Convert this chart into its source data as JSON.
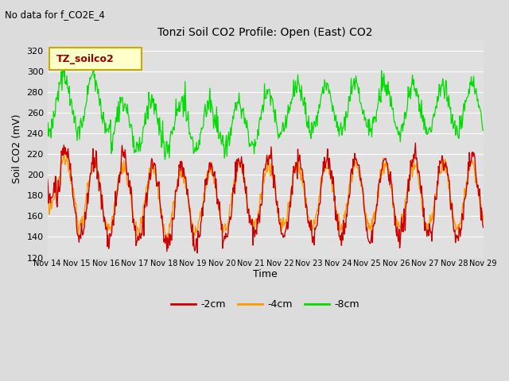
{
  "title": "Tonzi Soil CO2 Profile: Open (East) CO2",
  "subtitle": "No data for f_CO2E_4",
  "ylabel": "Soil CO2 (mV)",
  "xlabel": "Time",
  "legend_label": "TZ_soilco2",
  "ylim": [
    120,
    330
  ],
  "yticks": [
    120,
    140,
    160,
    180,
    200,
    220,
    240,
    260,
    280,
    300,
    320
  ],
  "xtick_labels": [
    "Nov 14",
    "Nov 15",
    "Nov 16",
    "Nov 17",
    "Nov 18",
    "Nov 19",
    "Nov 20",
    "Nov 21",
    "Nov 22",
    "Nov 23",
    "Nov 24",
    "Nov 25",
    "Nov 26",
    "Nov 27",
    "Nov 28",
    "Nov 29"
  ],
  "line_colors": {
    "neg2cm": "#cc0000",
    "neg4cm": "#ff9900",
    "neg8cm": "#00dd00"
  },
  "line_labels": [
    "-2cm",
    "-4cm",
    "-8cm"
  ],
  "background_color": "#dcdcdc",
  "plot_bg_color": "#e0e0e0",
  "grid_color": "#ffffff",
  "legend_box_color": "#ffffcc",
  "legend_box_edge": "#ccaa00"
}
